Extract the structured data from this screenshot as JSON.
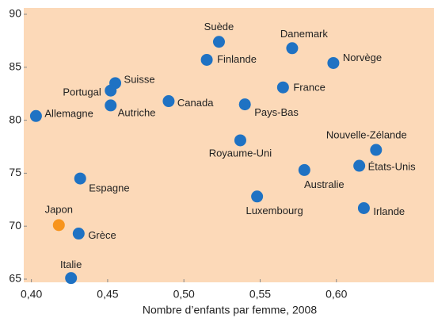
{
  "chart_data": {
    "type": "scatter",
    "x_label": "Nombre d’enfants par femme, 2008",
    "labels": [
      "Suède",
      "Danemark",
      "Finlande",
      "Norvège",
      "Suisse",
      "Portugal",
      "France",
      "Canada",
      "Autriche",
      "Pays-Bas",
      "Allemagne",
      "Royaume-Uni",
      "Nouvelle-Zélande",
      "États-Unis",
      "Australie",
      "Espagne",
      "Luxembourg",
      "Irlande",
      "Japon",
      "Grèce",
      "Italie"
    ],
    "x": [
      0.523,
      0.571,
      0.515,
      0.598,
      0.455,
      0.452,
      0.565,
      0.49,
      0.452,
      0.54,
      0.403,
      0.537,
      0.626,
      0.615,
      0.579,
      0.432,
      0.548,
      0.618,
      0.418,
      0.431,
      0.426
    ],
    "values": [
      87.4,
      86.8,
      85.7,
      85.4,
      83.5,
      82.8,
      83.1,
      81.8,
      81.4,
      81.5,
      80.4,
      78.1,
      77.2,
      75.7,
      75.3,
      74.5,
      72.8,
      71.7,
      70.1,
      69.3,
      65.1
    ],
    "point_colors": [
      "#1f72c3",
      "#1f72c3",
      "#1f72c3",
      "#1f72c3",
      "#1f72c3",
      "#1f72c3",
      "#1f72c3",
      "#1f72c3",
      "#1f72c3",
      "#1f72c3",
      "#1f72c3",
      "#1f72c3",
      "#1f72c3",
      "#1f72c3",
      "#1f72c3",
      "#1f72c3",
      "#1f72c3",
      "#1f72c3",
      "#f7941d",
      "#1f72c3",
      "#1f72c3"
    ],
    "xlim": [
      0.395,
      0.664
    ],
    "ylim": [
      64.7,
      90.6
    ],
    "xticks": [
      {
        "value": 0.4,
        "label": "0,40"
      },
      {
        "value": 0.45,
        "label": "0,45"
      },
      {
        "value": 0.5,
        "label": "0,50"
      },
      {
        "value": 0.55,
        "label": "0,55"
      },
      {
        "value": 0.6,
        "label": "0,60"
      }
    ],
    "yticks": [
      65,
      70,
      75,
      80,
      85,
      90
    ],
    "background": "#fcd9b8"
  }
}
